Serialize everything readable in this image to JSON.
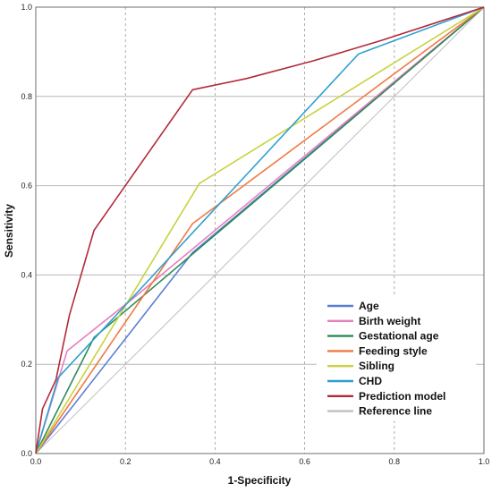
{
  "chart_data": {
    "type": "line",
    "title": "",
    "xlabel": "1-Specificity",
    "ylabel": "Sensitivity",
    "xlim": [
      0,
      1
    ],
    "ylim": [
      0,
      1
    ],
    "x_ticks": [
      "0.0",
      "0.2",
      "0.4",
      "0.6",
      "0.8",
      "1.0"
    ],
    "y_ticks": [
      "0.0",
      "0.2",
      "0.4",
      "0.6",
      "0.8",
      "1.0"
    ],
    "grid": "vertical dashed and horizontal solid",
    "legend_position": "bottom-right",
    "series": [
      {
        "name": "Age",
        "color": "#5b7fd6",
        "points": [
          [
            0,
            0
          ],
          [
            0.35,
            0.45
          ],
          [
            1,
            1
          ]
        ]
      },
      {
        "name": "Birth weight",
        "color": "#e67fbd",
        "points": [
          [
            0,
            0
          ],
          [
            0.07,
            0.23
          ],
          [
            0.22,
            0.35
          ],
          [
            1,
            1
          ]
        ]
      },
      {
        "name": "Gestational age",
        "color": "#2e8b57",
        "points": [
          [
            0,
            0
          ],
          [
            0.13,
            0.26
          ],
          [
            1,
            1
          ]
        ]
      },
      {
        "name": "Feeding style",
        "color": "#f07a45",
        "points": [
          [
            0,
            0
          ],
          [
            0.35,
            0.515
          ],
          [
            1,
            1
          ]
        ]
      },
      {
        "name": "Sibling",
        "color": "#c8d23e",
        "points": [
          [
            0,
            0
          ],
          [
            0.365,
            0.605
          ],
          [
            1,
            1
          ]
        ]
      },
      {
        "name": "CHD",
        "color": "#2f9fd0",
        "points": [
          [
            0,
            0
          ],
          [
            0.05,
            0.17
          ],
          [
            0.72,
            0.895
          ],
          [
            1,
            1
          ]
        ]
      },
      {
        "name": "Prediction model",
        "color": "#b22a3a",
        "points": [
          [
            0,
            0
          ],
          [
            0.015,
            0.1
          ],
          [
            0.045,
            0.165
          ],
          [
            0.075,
            0.31
          ],
          [
            0.13,
            0.5
          ],
          [
            0.35,
            0.815
          ],
          [
            0.47,
            0.84
          ],
          [
            0.62,
            0.88
          ],
          [
            0.77,
            0.925
          ],
          [
            1,
            1
          ]
        ]
      },
      {
        "name": "Reference line",
        "color": "#c0c0c0",
        "points": [
          [
            0,
            0
          ],
          [
            1,
            1
          ]
        ]
      }
    ]
  }
}
